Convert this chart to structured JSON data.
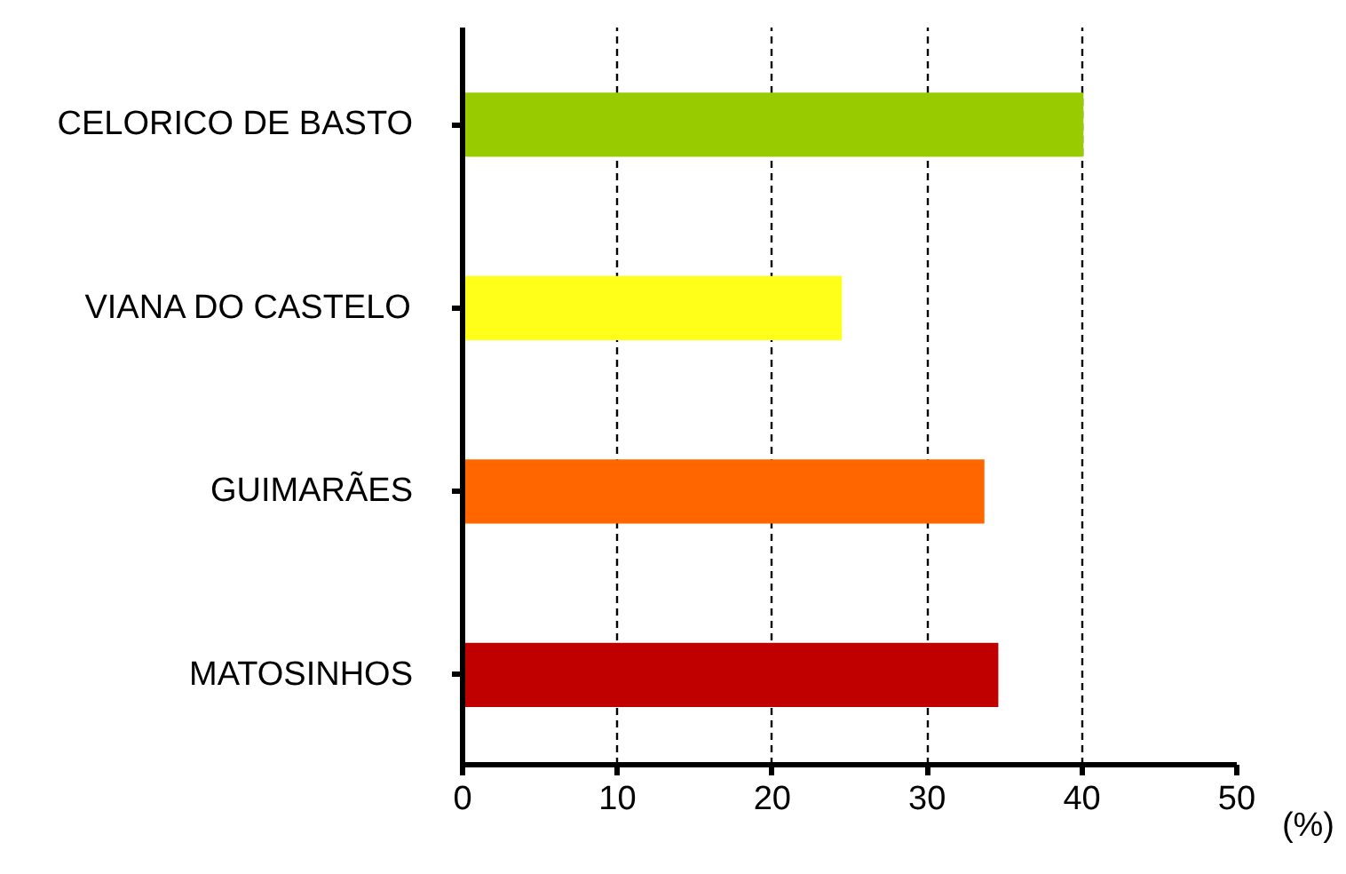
{
  "chart_data": {
    "type": "bar",
    "orientation": "horizontal",
    "xlabel": "(%)",
    "categories": [
      "CELORICO DE BASTO",
      "VIANA DO CASTELO",
      "GUIMARÃES",
      "MATOSINHOS"
    ],
    "values": [
      40.1,
      24.5,
      33.7,
      34.6
    ],
    "colors": [
      "#99cc00",
      "#ffff19",
      "#ff6600",
      "#c00000"
    ],
    "xlim": [
      0,
      50
    ],
    "xticks": [
      0,
      10,
      20,
      30,
      40,
      50
    ],
    "grid": "x",
    "line_style": "dashed"
  }
}
